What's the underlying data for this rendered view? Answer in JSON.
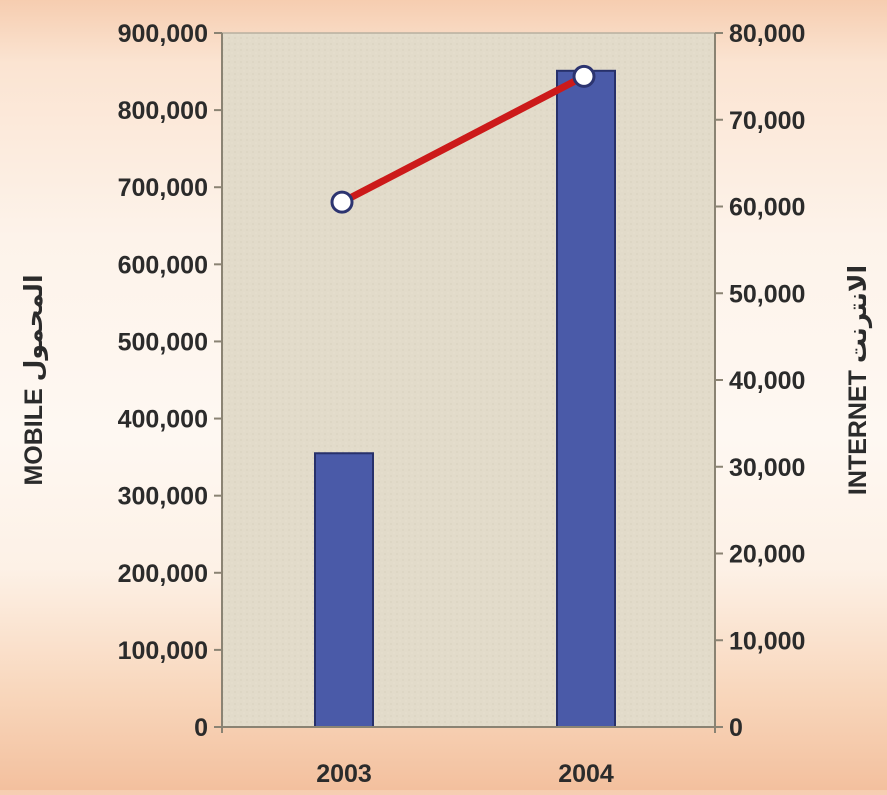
{
  "chart_data": {
    "type": "bar",
    "categories": [
      "2003",
      "2004"
    ],
    "series": [
      {
        "name": "MOBILE",
        "kind": "bar",
        "axis": "left",
        "values": [
          355000,
          851000
        ],
        "color": "#4a5aa8"
      },
      {
        "name": "INTERNET",
        "kind": "line",
        "axis": "right",
        "values": [
          60500,
          75000
        ],
        "color": "#cc1a1a"
      }
    ],
    "ylabel_left": "MOBILE المحمول",
    "ylabel_right": "INTERNET الانترنت",
    "ylim_left": [
      0,
      900000
    ],
    "ylim_right": [
      0,
      80000
    ],
    "yticks_left": [
      "0",
      "100,000",
      "200,000",
      "300,000",
      "400,000",
      "500,000",
      "600,000",
      "700,000",
      "800,000",
      "900,000"
    ],
    "yticks_right": [
      "0",
      "10,000",
      "20,000",
      "30,000",
      "40,000",
      "50,000",
      "60,000",
      "70,000",
      "80,000"
    ],
    "plot_background": "#e3dccb",
    "grid": false,
    "legend": "none"
  }
}
